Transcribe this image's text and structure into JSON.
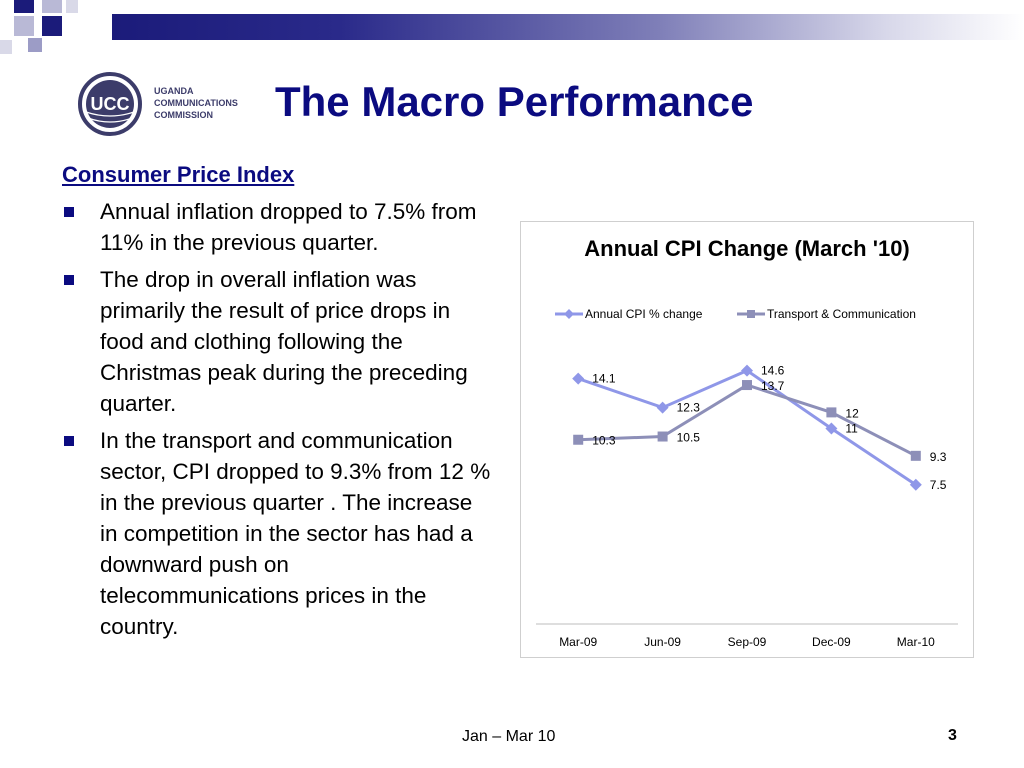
{
  "slide": {
    "title": "The Macro Performance",
    "subheading": "Consumer Price Index",
    "bullets": [
      "Annual inflation dropped to 7.5% from 11% in the previous quarter.",
      "The drop in overall inflation was primarily the result of price drops in food and clothing following the Christmas peak during the preceding quarter.",
      "In the transport and communication sector, CPI dropped to 9.3% from 12 % in the previous quarter . The increase in competition in the sector has had a downward push on telecommunications prices in the country."
    ],
    "footer_date": "Jan – Mar 10",
    "page_number": "3"
  },
  "logo": {
    "mark_text": "UCC",
    "name_lines": [
      "UGANDA",
      "COMMUNICATIONS",
      "COMMISSION"
    ]
  },
  "colors": {
    "title": "#0b0b80",
    "series1": "#8f97e8",
    "series2": "#8d8fb8",
    "header_bar": "#1b1b7a"
  },
  "chart_data": {
    "type": "line",
    "title": "Annual CPI Change (March '10)",
    "categories": [
      "Mar-09",
      "Jun-09",
      "Sep-09",
      "Dec-09",
      "Mar-10"
    ],
    "series": [
      {
        "name": "Annual CPI % change",
        "values": [
          14.1,
          12.3,
          14.6,
          11,
          7.5
        ]
      },
      {
        "name": "Transport & Communication",
        "values": [
          10.3,
          10.5,
          13.7,
          12,
          9.3
        ]
      }
    ],
    "legend_position": "top",
    "grid": false,
    "data_labels": true
  }
}
